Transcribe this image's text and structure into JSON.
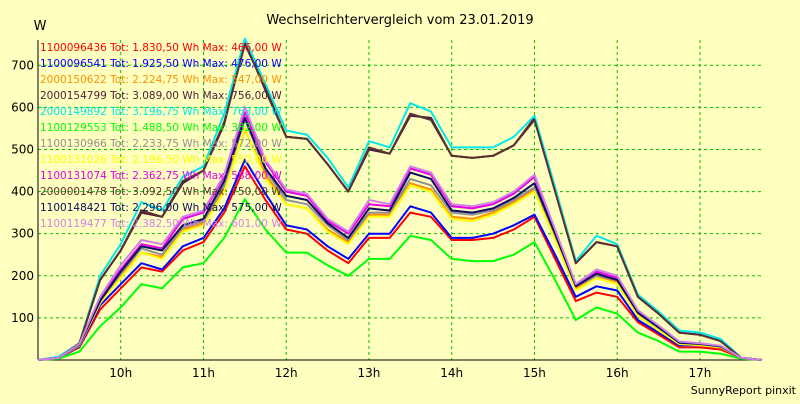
{
  "chart_data": {
    "type": "line",
    "title": "Wechselrichtervergleich vom 23.01.2019",
    "ylabel": "W",
    "xlabel": "",
    "footer": "SunnyReport pinxit",
    "grid": true,
    "legend_placement": "top-left",
    "ylim": [
      0,
      760
    ],
    "xlim": [
      9.0,
      17.75
    ],
    "y_ticks": [
      100,
      200,
      300,
      400,
      500,
      600,
      700
    ],
    "x_ticks": [
      {
        "value": 10,
        "label": "10h"
      },
      {
        "value": 11,
        "label": "11h"
      },
      {
        "value": 12,
        "label": "12h"
      },
      {
        "value": 13,
        "label": "13h"
      },
      {
        "value": 14,
        "label": "14h"
      },
      {
        "value": 15,
        "label": "15h"
      },
      {
        "value": 16,
        "label": "16h"
      },
      {
        "value": 17,
        "label": "17h"
      }
    ],
    "x": [
      9.0,
      9.25,
      9.5,
      9.75,
      10.0,
      10.25,
      10.5,
      10.75,
      11.0,
      11.25,
      11.5,
      11.75,
      12.0,
      12.25,
      12.5,
      12.75,
      13.0,
      13.25,
      13.5,
      13.75,
      14.0,
      14.25,
      14.5,
      14.75,
      15.0,
      15.25,
      15.5,
      15.75,
      16.0,
      16.25,
      16.5,
      16.75,
      17.0,
      17.25,
      17.5,
      17.75
    ],
    "series": [
      {
        "name": "1100096436",
        "legend": "1100096436 Tot: 1.830,50 Wh Max: 466,00 W",
        "color": "#ff0000",
        "values": [
          0,
          5,
          30,
          120,
          170,
          220,
          210,
          260,
          280,
          350,
          460,
          380,
          310,
          300,
          260,
          230,
          290,
          290,
          350,
          340,
          285,
          285,
          290,
          310,
          340,
          240,
          140,
          160,
          150,
          90,
          60,
          30,
          30,
          25,
          5,
          0
        ]
      },
      {
        "name": "1100096541",
        "legend": "1100096541 Tot: 1.925,50 Wh Max: 476,00 W",
        "color": "#0000ff",
        "values": [
          0,
          5,
          32,
          130,
          180,
          230,
          215,
          270,
          290,
          360,
          476,
          395,
          320,
          310,
          270,
          240,
          300,
          300,
          365,
          350,
          290,
          290,
          300,
          320,
          345,
          250,
          150,
          175,
          165,
          95,
          65,
          35,
          35,
          30,
          5,
          0
        ]
      },
      {
        "name": "2000150622",
        "legend": "2000150622 Tot: 2.224,75 Wh Max: 547,00 W",
        "color": "#ff9000",
        "values": [
          0,
          5,
          35,
          135,
          200,
          255,
          245,
          310,
          325,
          405,
          547,
          440,
          370,
          360,
          310,
          280,
          345,
          345,
          420,
          405,
          340,
          335,
          350,
          375,
          405,
          290,
          170,
          200,
          185,
          105,
          70,
          40,
          35,
          30,
          5,
          0
        ]
      },
      {
        "name": "2000154799",
        "legend": "2000154799 Tot: 3.089,00 Wh Max: 756,00 W",
        "color": "#4a1e3a",
        "values": [
          0,
          5,
          40,
          190,
          260,
          350,
          340,
          420,
          450,
          560,
          756,
          640,
          530,
          525,
          465,
          400,
          500,
          490,
          580,
          575,
          485,
          480,
          485,
          510,
          575,
          405,
          230,
          280,
          270,
          150,
          110,
          65,
          60,
          45,
          5,
          0
        ]
      },
      {
        "name": "2000149892",
        "legend": "2000149892 Tot: 3.196,75 Wh Max: 763,00 W",
        "color": "#00e8e8",
        "values": [
          0,
          8,
          40,
          200,
          275,
          375,
          355,
          435,
          460,
          585,
          763,
          655,
          545,
          535,
          480,
          410,
          520,
          505,
          610,
          590,
          505,
          505,
          505,
          530,
          580,
          410,
          235,
          295,
          275,
          155,
          115,
          70,
          65,
          50,
          5,
          0
        ]
      },
      {
        "name": "1100129553",
        "legend": "1100129553 Tot: 1.488,50 Wh Max: 382,00 W",
        "color": "#00ff00",
        "values": [
          0,
          3,
          20,
          80,
          125,
          180,
          170,
          220,
          230,
          290,
          382,
          310,
          255,
          255,
          225,
          200,
          240,
          240,
          295,
          285,
          240,
          235,
          235,
          250,
          280,
          190,
          95,
          125,
          110,
          65,
          45,
          20,
          20,
          15,
          3,
          0
        ]
      },
      {
        "name": "1100130966",
        "legend": "1100130966 Tot: 2.233,75 Wh Max: 572,00 W",
        "color": "#909090",
        "values": [
          0,
          5,
          35,
          140,
          205,
          265,
          250,
          315,
          330,
          415,
          572,
          450,
          380,
          370,
          320,
          285,
          350,
          350,
          430,
          415,
          350,
          345,
          355,
          380,
          410,
          295,
          175,
          200,
          190,
          110,
          75,
          40,
          38,
          32,
          5,
          0
        ]
      },
      {
        "name": "1100131026",
        "legend": "1100131026 Tot: 2.196,50 Wh Max: 550,00 W",
        "color": "#ffff00",
        "values": [
          0,
          5,
          34,
          135,
          195,
          255,
          240,
          305,
          320,
          400,
          550,
          430,
          370,
          360,
          305,
          275,
          340,
          340,
          415,
          400,
          335,
          330,
          345,
          370,
          400,
          285,
          165,
          195,
          180,
          105,
          70,
          38,
          35,
          30,
          5,
          0
        ]
      },
      {
        "name": "1100131074",
        "legend": "1100131074 Tot: 2.362,75 Wh Max: 588,00 W",
        "color": "#e800e8",
        "values": [
          0,
          5,
          38,
          145,
          215,
          275,
          265,
          335,
          350,
          435,
          588,
          470,
          400,
          390,
          330,
          300,
          370,
          365,
          455,
          440,
          365,
          360,
          370,
          395,
          435,
          305,
          180,
          210,
          195,
          115,
          80,
          42,
          40,
          33,
          5,
          0
        ]
      },
      {
        "name": "2000001478",
        "legend": "2000001478 Tot: 3.092,50 Wh Max: 750,00 W",
        "color": "#5a3030",
        "values": [
          0,
          5,
          40,
          190,
          260,
          355,
          340,
          425,
          450,
          565,
          750,
          645,
          530,
          525,
          465,
          400,
          505,
          490,
          585,
          570,
          485,
          480,
          485,
          510,
          570,
          400,
          230,
          280,
          270,
          150,
          110,
          65,
          60,
          45,
          5,
          0
        ]
      },
      {
        "name": "1100148421",
        "legend": "1100148421 Tot: 2.296,00 Wh Max: 575,00 W",
        "color": "#0a0a60",
        "values": [
          0,
          5,
          36,
          140,
          210,
          270,
          260,
          320,
          335,
          425,
          575,
          455,
          390,
          380,
          325,
          290,
          360,
          355,
          445,
          430,
          355,
          350,
          360,
          385,
          420,
          300,
          175,
          205,
          190,
          112,
          78,
          41,
          38,
          32,
          5,
          0
        ]
      },
      {
        "name": "1100119477",
        "legend": "1100119477 Tot: 2.382,50 Wh Max: 601,00 W",
        "color": "#d080e8",
        "values": [
          0,
          5,
          38,
          150,
          225,
          285,
          275,
          340,
          355,
          440,
          601,
          475,
          405,
          395,
          335,
          305,
          380,
          370,
          460,
          445,
          370,
          365,
          375,
          400,
          440,
          310,
          180,
          215,
          200,
          118,
          82,
          44,
          40,
          34,
          5,
          0
        ]
      }
    ]
  }
}
